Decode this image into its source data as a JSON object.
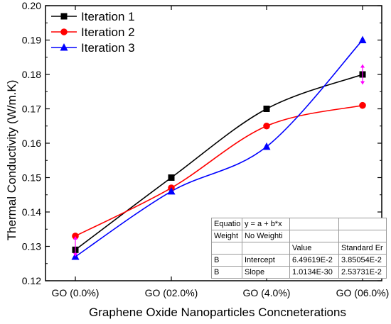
{
  "chart_data": {
    "type": "line",
    "categories": [
      "GO (0.0%)",
      "GO (02.0%)",
      "GO (4.0%)",
      "GO (06.0%)"
    ],
    "series": [
      {
        "name": "Iteration 1",
        "values": [
          0.129,
          0.15,
          0.17,
          0.18
        ],
        "color": "#000000",
        "marker": "square"
      },
      {
        "name": "Iteration 2",
        "values": [
          0.133,
          0.147,
          0.165,
          0.171
        ],
        "color": "#ff0000",
        "marker": "circle"
      },
      {
        "name": "Iteration 3",
        "values": [
          0.127,
          0.146,
          0.159,
          0.19
        ],
        "color": "#0000ff",
        "marker": "triangle"
      }
    ],
    "xlabel": "Graphene Oxide Nanoparticles Concneterations",
    "ylabel": "Thermal Conductivity (W/m.K)",
    "ylim": [
      0.12,
      0.2
    ],
    "yticks": [
      "0.12",
      "0.13",
      "0.14",
      "0.15",
      "0.16",
      "0.17",
      "0.18",
      "0.19",
      "0.20"
    ],
    "legend_position": "top-left",
    "grid": false,
    "error_markers": [
      {
        "category": "GO (0.0%)",
        "low": 0.127,
        "high": 0.133,
        "color": "#ff00ff"
      },
      {
        "category": "GO (06.0%)",
        "low": 0.177,
        "high": 0.183,
        "color": "#ff00ff"
      }
    ],
    "fit_table": {
      "rows": [
        [
          "Equatio",
          "y = a + b*x",
          "",
          ""
        ],
        [
          "Weight",
          "No Weighti",
          "",
          ""
        ],
        [
          "",
          "",
          "Value",
          "Standard Er"
        ],
        [
          "B",
          "Intercept",
          "6.49619E-2",
          "3.85054E-2"
        ],
        [
          "B",
          "Slope",
          "1.0134E-30",
          "2.53731E-2"
        ]
      ]
    }
  }
}
